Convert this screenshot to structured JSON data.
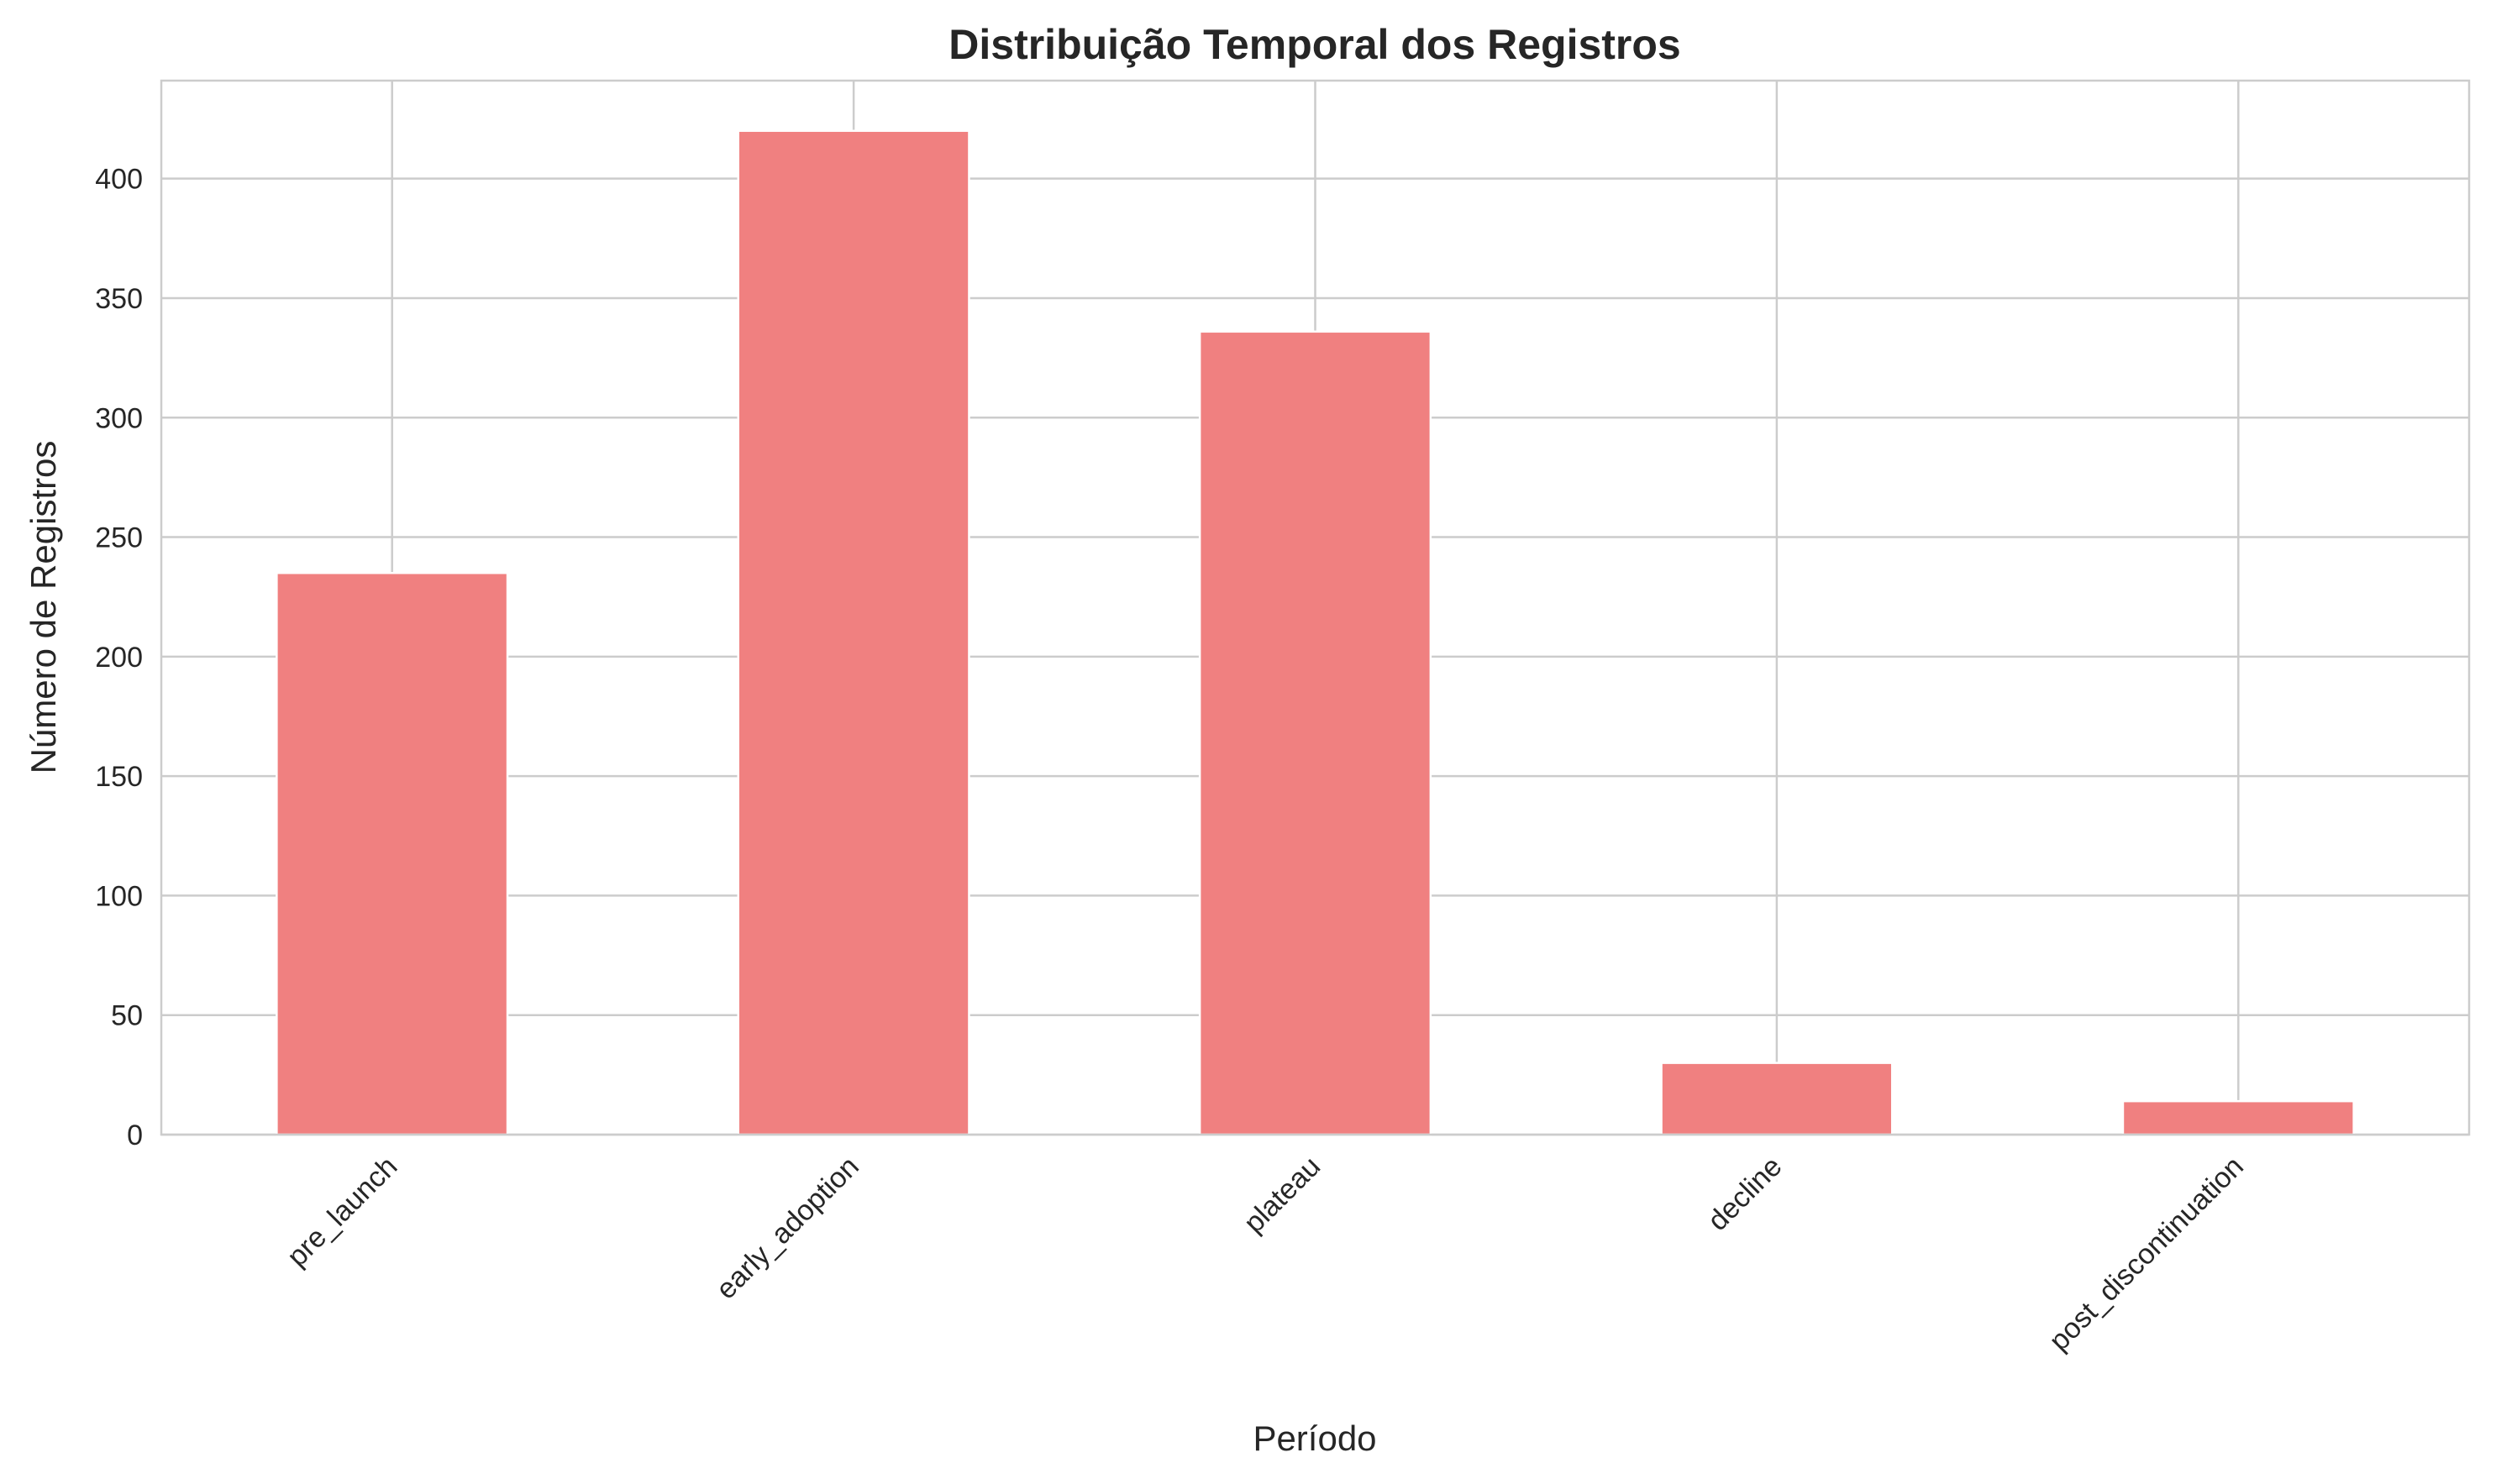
{
  "chart_data": {
    "type": "bar",
    "title": "Distribuição Temporal dos Registros",
    "xlabel": "Período",
    "ylabel": "Número de Registros",
    "categories": [
      "pre_launch",
      "early_adoption",
      "plateau",
      "decline",
      "post_discontinuation"
    ],
    "values": [
      235,
      420,
      336,
      30,
      14
    ],
    "ylim": [
      0,
      441
    ],
    "yticks": [
      0,
      50,
      100,
      150,
      200,
      250,
      300,
      350,
      400
    ],
    "grid": true,
    "legend": "none",
    "bar_color": "#f08080",
    "grid_color": "#cccccc",
    "text_color": "#262626"
  }
}
